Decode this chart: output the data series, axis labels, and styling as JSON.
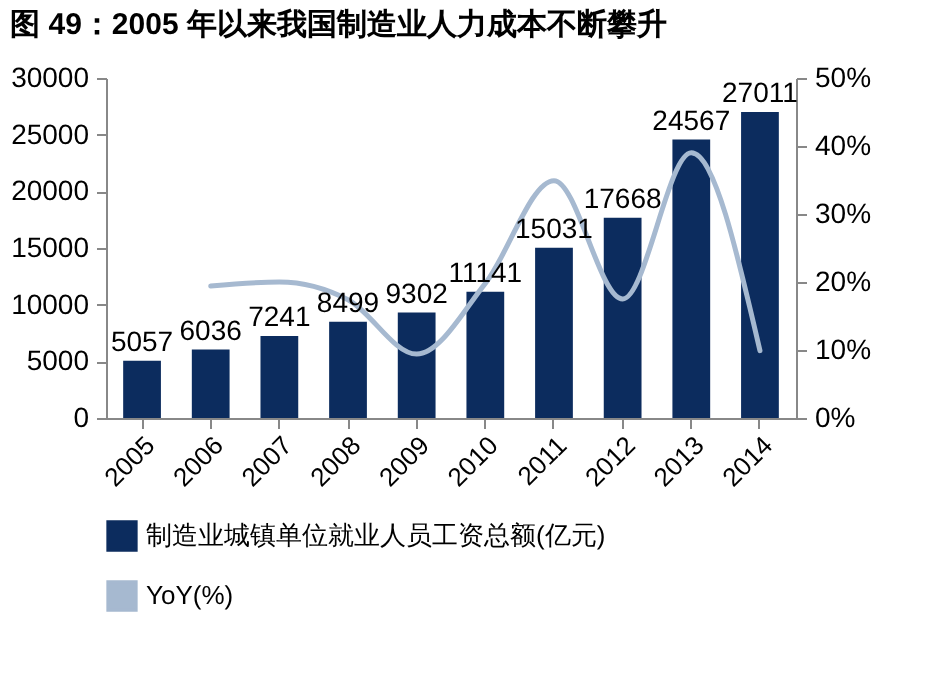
{
  "chart_data": {
    "type": "bar",
    "title": "图 49：2005 年以来我国制造业人力成本不断攀升",
    "categories": [
      "2005",
      "2006",
      "2007",
      "2008",
      "2009",
      "2010",
      "2011",
      "2012",
      "2013",
      "2014"
    ],
    "series": [
      {
        "name": "制造业城镇单位就业人员工资总额(亿元)",
        "color": "#0c2c5e",
        "values": [
          5057,
          6036,
          7241,
          8499,
          9302,
          11141,
          15031,
          17668,
          24567,
          27011
        ],
        "value_labels": [
          "5057",
          "6036",
          "7241",
          "8499",
          "9302",
          "11141",
          "15031",
          "17668",
          "24567",
          "27011"
        ]
      },
      {
        "name": "YoY(%)",
        "type": "line",
        "axis": "y2",
        "color": "#a6b9d0",
        "values": [
          null,
          19.4,
          20.0,
          17.4,
          9.4,
          19.8,
          34.9,
          17.5,
          39.0,
          9.9
        ]
      }
    ],
    "ylim": [
      0,
      30000
    ],
    "yticks": [
      0,
      5000,
      10000,
      15000,
      20000,
      25000,
      30000
    ],
    "y2lim": [
      0,
      50
    ],
    "y2ticks": [
      {
        "value": 0,
        "label": "0%"
      },
      {
        "value": 10,
        "label": "10%"
      },
      {
        "value": 20,
        "label": "20%"
      },
      {
        "value": 30,
        "label": "30%"
      },
      {
        "value": 40,
        "label": "40%"
      },
      {
        "value": 50,
        "label": "50%"
      }
    ],
    "grid": false,
    "legend": "bottom",
    "line_style": "solid",
    "marker": "none"
  }
}
